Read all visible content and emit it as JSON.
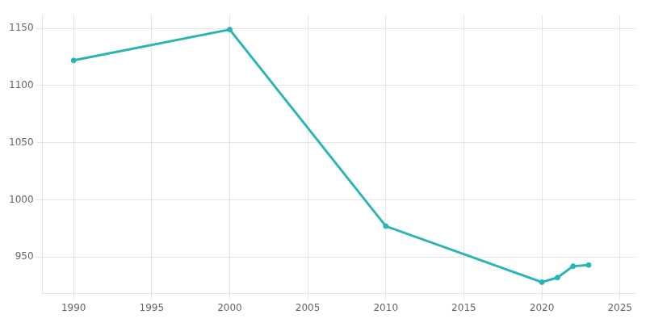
{
  "chart_data": {
    "type": "line",
    "x": [
      1990,
      2000,
      2010,
      2020,
      2021,
      2022,
      2023
    ],
    "values": [
      1122,
      1149,
      977,
      928,
      932,
      942,
      943
    ],
    "color": "#2ab5b5",
    "marker": "o",
    "xlim": [
      1988,
      2026
    ],
    "ylim": [
      918,
      1162
    ],
    "xticks": [
      1990,
      1995,
      2000,
      2005,
      2010,
      2015,
      2020,
      2025
    ],
    "yticks": [
      950,
      1000,
      1050,
      1100,
      1150
    ],
    "grid": true
  }
}
